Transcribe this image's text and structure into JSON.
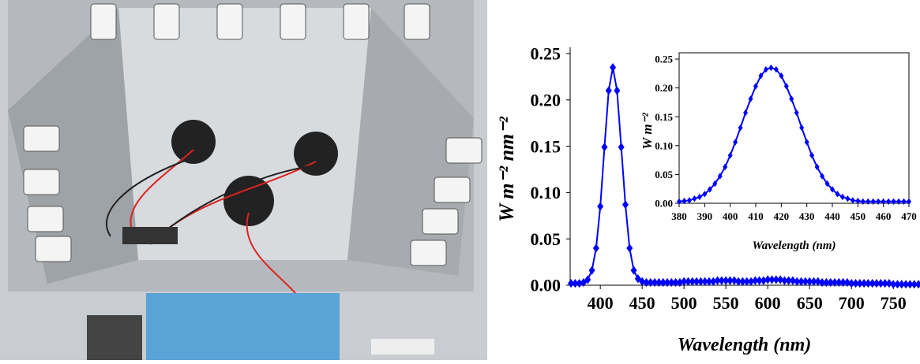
{
  "chart_data": [
    {
      "type": "line",
      "color": "#0000ff",
      "marker": "diamond",
      "x_label": "Wavelength (nm)",
      "y_label": "W m⁻² nm⁻²",
      "xlim": [
        364,
        780
      ],
      "ylim": [
        0,
        0.25
      ],
      "xticks": [
        400,
        450,
        500,
        550,
        600,
        650,
        700,
        750
      ],
      "yticks": [
        {
          "value": 0,
          "label": "0.00"
        },
        0.05,
        {
          "value": 0.1,
          "label": "0.10"
        },
        0.15,
        {
          "value": 0.2,
          "label": "0.20"
        },
        0.25
      ],
      "x": [
        365,
        370,
        375,
        380,
        385,
        390,
        395,
        400,
        405,
        410,
        415,
        420,
        425,
        430,
        435,
        440,
        445,
        450,
        455,
        460,
        465,
        470,
        475,
        480,
        485,
        490,
        495,
        500,
        505,
        510,
        515,
        520,
        525,
        530,
        535,
        540,
        545,
        550,
        555,
        560,
        565,
        570,
        575,
        580,
        585,
        590,
        595,
        600,
        605,
        610,
        615,
        620,
        625,
        630,
        635,
        640,
        645,
        650,
        655,
        660,
        665,
        670,
        675,
        680,
        685,
        690,
        695,
        700,
        705,
        710,
        715,
        720,
        725,
        730,
        735,
        740,
        745,
        750,
        755,
        760,
        765,
        770,
        775,
        780
      ],
      "values": [
        0.002,
        0.002,
        0.002,
        0.003,
        0.006,
        0.016,
        0.04,
        0.085,
        0.149,
        0.21,
        0.235,
        0.21,
        0.149,
        0.087,
        0.04,
        0.016,
        0.007,
        0.004,
        0.003,
        0.003,
        0.003,
        0.003,
        0.003,
        0.003,
        0.003,
        0.003,
        0.003,
        0.004,
        0.004,
        0.004,
        0.004,
        0.004,
        0.004,
        0.004,
        0.004,
        0.005,
        0.005,
        0.005,
        0.005,
        0.005,
        0.004,
        0.004,
        0.004,
        0.004,
        0.005,
        0.005,
        0.005,
        0.006,
        0.006,
        0.006,
        0.006,
        0.005,
        0.005,
        0.005,
        0.004,
        0.004,
        0.004,
        0.004,
        0.004,
        0.004,
        0.003,
        0.003,
        0.003,
        0.003,
        0.003,
        0.003,
        0.003,
        0.002,
        0.002,
        0.002,
        0.002,
        0.002,
        0.002,
        0.002,
        0.002,
        0.002,
        0.002,
        0.001,
        0.001,
        0.001,
        0.001,
        0.001,
        0.001,
        0.001
      ]
    },
    {
      "type": "line",
      "color": "#0000ff",
      "marker": "diamond",
      "x_label": "Wavelength (nm)",
      "y_label": "W m⁻²",
      "xlim": [
        380,
        470
      ],
      "ylim": [
        0,
        0.25
      ],
      "xticks": [
        380,
        390,
        400,
        410,
        420,
        430,
        440,
        450,
        460,
        470
      ],
      "yticks": [
        {
          "value": 0,
          "label": "0.00"
        },
        0.05,
        {
          "value": 0.1,
          "label": "0.10"
        },
        0.15,
        {
          "value": 0.2,
          "label": "0.20"
        },
        0.25
      ],
      "x": [
        380,
        382,
        384,
        386,
        388,
        390,
        392,
        394,
        396,
        398,
        400,
        402,
        404,
        406,
        408,
        410,
        412,
        414,
        416,
        418,
        420,
        422,
        424,
        426,
        428,
        430,
        432,
        434,
        436,
        438,
        440,
        442,
        444,
        446,
        448,
        450,
        452,
        454,
        456,
        458,
        460,
        462,
        464,
        466,
        468,
        470
      ],
      "values": [
        0.003,
        0.004,
        0.005,
        0.008,
        0.011,
        0.016,
        0.024,
        0.034,
        0.047,
        0.063,
        0.083,
        0.106,
        0.131,
        0.157,
        0.181,
        0.203,
        0.221,
        0.232,
        0.235,
        0.232,
        0.221,
        0.203,
        0.181,
        0.157,
        0.131,
        0.106,
        0.083,
        0.063,
        0.047,
        0.034,
        0.024,
        0.016,
        0.011,
        0.008,
        0.005,
        0.004,
        0.003,
        0.003,
        0.003,
        0.003,
        0.003,
        0.003,
        0.003,
        0.003,
        0.003,
        0.003
      ]
    }
  ]
}
